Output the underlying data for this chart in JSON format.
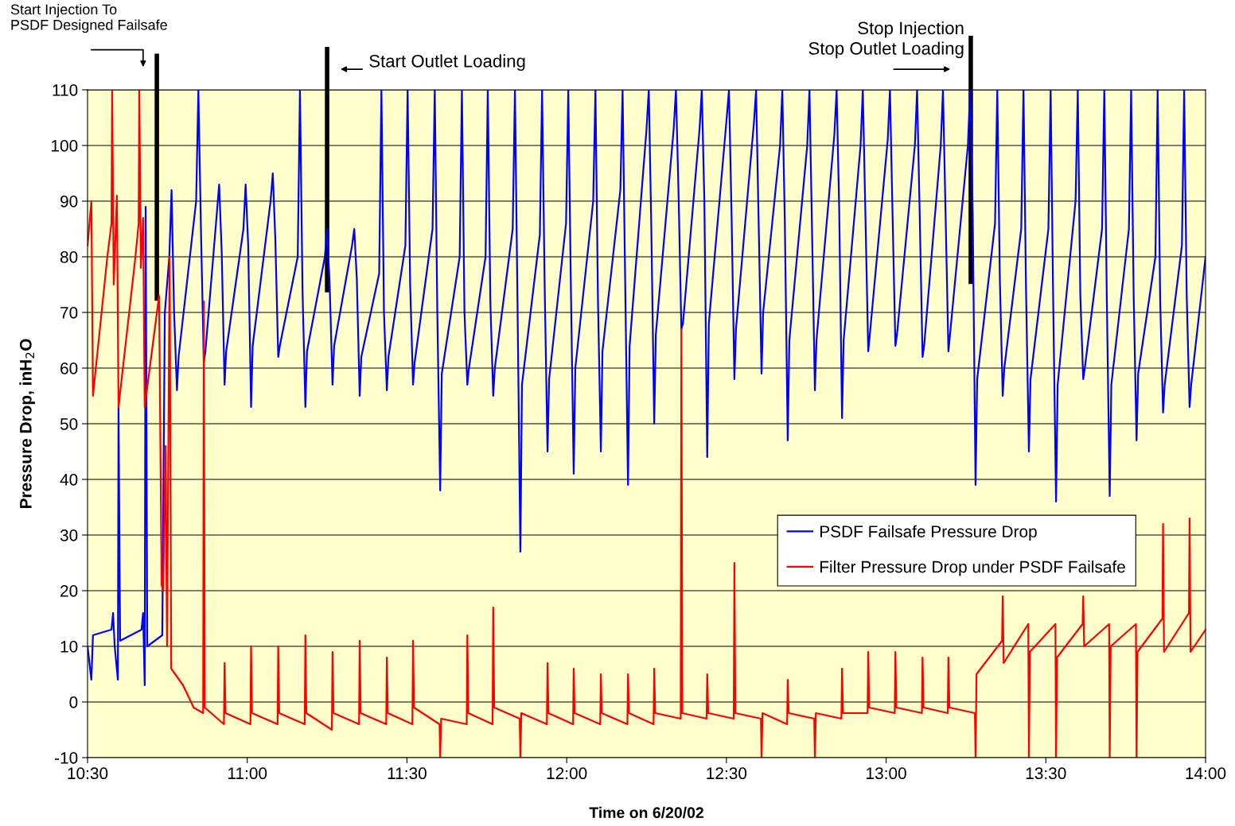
{
  "chart_data": {
    "type": "line",
    "xlabel": "Time on 6/20/02",
    "ylabel": "Pressure Drop, inH$_{2}$O",
    "xlim": [
      10.5,
      14.0
    ],
    "xticks": [
      {
        "value": 10.5,
        "label": "10:30"
      },
      {
        "value": 11.0,
        "label": "11:00"
      },
      {
        "value": 11.5,
        "label": "11:30"
      },
      {
        "value": 12.0,
        "label": "12:00"
      },
      {
        "value": 12.5,
        "label": "12:30"
      },
      {
        "value": 13.0,
        "label": "13:00"
      },
      {
        "value": 13.5,
        "label": "13:30"
      },
      {
        "value": 14.0,
        "label": "14:00"
      }
    ],
    "ylim": [
      -10,
      110
    ],
    "yticks": [
      -10,
      0,
      10,
      20,
      30,
      40,
      50,
      60,
      70,
      80,
      90,
      100,
      110
    ],
    "grid": "y",
    "legend": "right",
    "line_style": "solid",
    "marker": "none",
    "ref_lines": [
      {
        "axis": "x",
        "value": 10.717,
        "label": "Start Injection To\nPSDF Designed Failsafe",
        "color": "#000000"
      },
      {
        "axis": "x",
        "value": 11.25,
        "label": "Start Outlet Loading",
        "color": "#000000"
      },
      {
        "axis": "x",
        "value": 13.265,
        "label": "Stop Injection\nStop Outlet Loading",
        "color": "#000000"
      }
    ],
    "series": [
      {
        "name": "PSDF Failsafe Pressure Drop",
        "color": "#0000ff",
        "x": [
          10.5,
          10.512,
          10.517,
          10.575,
          10.58,
          10.585,
          10.595,
          10.597,
          10.602,
          10.669,
          10.674,
          10.679,
          10.682,
          10.687,
          10.734,
          10.742,
          10.756,
          10.763,
          10.771,
          10.78,
          10.785,
          10.84,
          10.847,
          10.855,
          10.864,
          10.869,
          10.905,
          10.912,
          10.92,
          10.929,
          10.934,
          10.988,
          10.995,
          11.003,
          11.012,
          11.017,
          11.073,
          11.08,
          11.088,
          11.097,
          11.102,
          11.158,
          11.165,
          11.173,
          11.182,
          11.187,
          11.243,
          11.25,
          11.258,
          11.267,
          11.272,
          11.328,
          11.335,
          11.343,
          11.352,
          11.357,
          11.413,
          11.42,
          11.428,
          11.437,
          11.442,
          11.495,
          11.502,
          11.51,
          11.519,
          11.524,
          11.58,
          11.587,
          11.595,
          11.604,
          11.609,
          11.665,
          11.672,
          11.68,
          11.689,
          11.694,
          11.746,
          11.753,
          11.761,
          11.77,
          11.775,
          11.831,
          11.838,
          11.846,
          11.855,
          11.86,
          11.916,
          11.923,
          11.931,
          11.94,
          11.945,
          11.998,
          12.005,
          12.013,
          12.022,
          12.027,
          12.083,
          12.09,
          12.098,
          12.107,
          12.112,
          12.168,
          12.175,
          12.183,
          12.192,
          12.197,
          12.25,
          12.257,
          12.265,
          12.274,
          12.279,
          12.335,
          12.342,
          12.35,
          12.359,
          12.364,
          12.416,
          12.423,
          12.431,
          12.44,
          12.445,
          12.501,
          12.508,
          12.516,
          12.525,
          12.53,
          12.586,
          12.593,
          12.601,
          12.61,
          12.615,
          12.668,
          12.675,
          12.683,
          12.692,
          12.697,
          12.753,
          12.76,
          12.768,
          12.777,
          12.782,
          12.838,
          12.845,
          12.853,
          12.862,
          12.867,
          12.92,
          12.927,
          12.935,
          12.944,
          12.949,
          13.005,
          13.012,
          13.02,
          13.029,
          13.034,
          13.09,
          13.097,
          13.105,
          13.114,
          13.119,
          13.171,
          13.178,
          13.186,
          13.195,
          13.2,
          13.256,
          13.263,
          13.271,
          13.28,
          13.285,
          13.341,
          13.348,
          13.356,
          13.365,
          13.37,
          13.423,
          13.43,
          13.438,
          13.447,
          13.452,
          13.508,
          13.515,
          13.523,
          13.532,
          13.537,
          13.593,
          13.6,
          13.608,
          13.617,
          13.622,
          13.676,
          13.683,
          13.691,
          13.7,
          13.705,
          13.76,
          13.767,
          13.775,
          13.784,
          13.789,
          13.843,
          13.85,
          13.858,
          13.867,
          13.872,
          13.926,
          13.933,
          13.941,
          13.95,
          13.955,
          14.0
        ],
        "values": [
          10,
          4,
          12,
          13,
          16,
          10,
          4,
          53,
          11,
          13,
          16,
          3,
          89,
          10,
          12,
          70,
          80,
          92,
          70,
          56,
          62,
          90,
          110,
          85,
          61,
          63,
          88,
          93,
          81,
          57,
          63,
          85,
          93,
          82,
          53,
          64,
          90,
          95,
          83,
          62,
          64,
          80,
          110,
          74,
          53,
          63,
          80,
          85,
          75,
          57,
          64,
          82,
          85,
          76,
          55,
          62,
          77,
          110,
          70,
          56,
          62,
          82,
          110,
          75,
          57,
          61,
          85,
          110,
          70,
          38,
          59,
          80,
          110,
          70,
          57,
          60,
          80,
          110,
          72,
          55,
          60,
          85,
          110,
          72,
          27,
          57,
          84,
          110,
          75,
          45,
          58,
          86,
          110,
          75,
          41,
          60,
          90,
          110,
          72,
          45,
          63,
          92,
          110,
          76,
          39,
          64,
          103,
          110,
          85,
          50,
          66,
          103,
          110,
          92,
          67,
          68,
          103,
          110,
          90,
          44,
          68,
          105,
          110,
          88,
          58,
          67,
          104,
          110,
          86,
          59,
          70,
          100,
          110,
          86,
          47,
          65,
          100,
          110,
          85,
          56,
          65,
          102,
          110,
          89,
          51,
          65,
          100,
          110,
          88,
          63,
          66,
          101,
          110,
          88,
          64,
          66,
          100,
          110,
          88,
          62,
          64,
          100,
          110,
          88,
          63,
          66,
          100,
          110,
          88,
          39,
          58,
          86,
          110,
          76,
          55,
          60,
          85,
          110,
          74,
          45,
          58,
          85,
          110,
          72,
          36,
          57,
          90,
          110,
          73,
          58,
          60,
          85,
          110,
          72,
          37,
          57,
          85,
          110,
          73,
          47,
          59,
          80,
          110,
          72,
          52,
          57,
          82,
          110,
          73,
          53,
          57,
          80
        ]
      },
      {
        "name": "Filter Pressure Drop under PSDF Failsafe",
        "color": "#ff0000",
        "x": [
          10.5,
          10.512,
          10.517,
          10.562,
          10.575,
          10.577,
          10.582,
          10.592,
          10.597,
          10.65,
          10.66,
          10.662,
          10.667,
          10.674,
          10.679,
          10.724,
          10.732,
          10.737,
          10.744,
          10.749,
          10.757,
          10.762,
          10.799,
          10.824,
          10.832,
          10.862,
          10.864,
          10.867,
          10.927,
          10.929,
          10.932,
          11.01,
          11.012,
          11.015,
          11.095,
          11.097,
          11.1,
          11.18,
          11.182,
          11.185,
          11.265,
          11.267,
          11.27,
          11.35,
          11.352,
          11.355,
          11.435,
          11.437,
          11.44,
          11.517,
          11.519,
          11.522,
          11.602,
          11.604,
          11.607,
          11.687,
          11.689,
          11.692,
          11.768,
          11.77,
          11.773,
          11.853,
          11.855,
          11.858,
          11.938,
          11.94,
          11.943,
          12.02,
          12.022,
          12.025,
          12.105,
          12.107,
          12.11,
          12.19,
          12.192,
          12.195,
          12.272,
          12.274,
          12.277,
          12.357,
          12.359,
          12.362,
          12.438,
          12.44,
          12.443,
          12.523,
          12.525,
          12.528,
          12.608,
          12.61,
          12.613,
          12.69,
          12.692,
          12.695,
          12.775,
          12.777,
          12.78,
          12.86,
          12.862,
          12.865,
          12.942,
          12.944,
          12.947,
          13.027,
          13.029,
          13.032,
          13.112,
          13.114,
          13.117,
          13.193,
          13.195,
          13.198,
          13.278,
          13.28,
          13.283,
          13.363,
          13.365,
          13.368,
          13.445,
          13.447,
          13.45,
          13.53,
          13.532,
          13.535,
          13.615,
          13.617,
          13.62,
          13.698,
          13.7,
          13.703,
          13.782,
          13.784,
          13.787,
          13.865,
          13.867,
          13.87,
          13.948,
          13.95,
          13.953,
          14.0
        ],
        "values": [
          82,
          90,
          55,
          80,
          86,
          110,
          75,
          91,
          53,
          80,
          86,
          110,
          78,
          87,
          53,
          73,
          21,
          20,
          46,
          10,
          80,
          6,
          3,
          0,
          -1,
          -2,
          72,
          -1,
          -4,
          7,
          -2,
          -4,
          10,
          -2,
          -4,
          10,
          -2,
          -4,
          12,
          -2,
          -5,
          9,
          -2,
          -4,
          11,
          -2,
          -4,
          8,
          -2,
          -4,
          11,
          -1,
          -4,
          -10,
          -3,
          -4,
          12,
          -2,
          -4,
          17,
          -1,
          -3,
          -10,
          -2,
          -4,
          7,
          -2,
          -4,
          6,
          -2,
          -4,
          5,
          -2,
          -4,
          5,
          -2,
          -4,
          6,
          -2,
          -3,
          67,
          -2,
          -3,
          5,
          -2,
          -3,
          25,
          -2,
          -3,
          -10,
          -2,
          -4,
          4,
          -2,
          -3,
          -10,
          -2,
          -3,
          6,
          -2,
          -2,
          9,
          -1,
          -2,
          9,
          -1,
          -2,
          8,
          -1,
          -2,
          8,
          -1,
          -2,
          -10,
          5,
          11,
          19,
          7,
          14,
          -10,
          9,
          14,
          -10,
          8,
          14,
          19,
          10,
          14,
          -10,
          10,
          14,
          -10,
          9,
          15,
          32,
          9,
          16,
          33,
          9,
          13
        ]
      }
    ]
  }
}
